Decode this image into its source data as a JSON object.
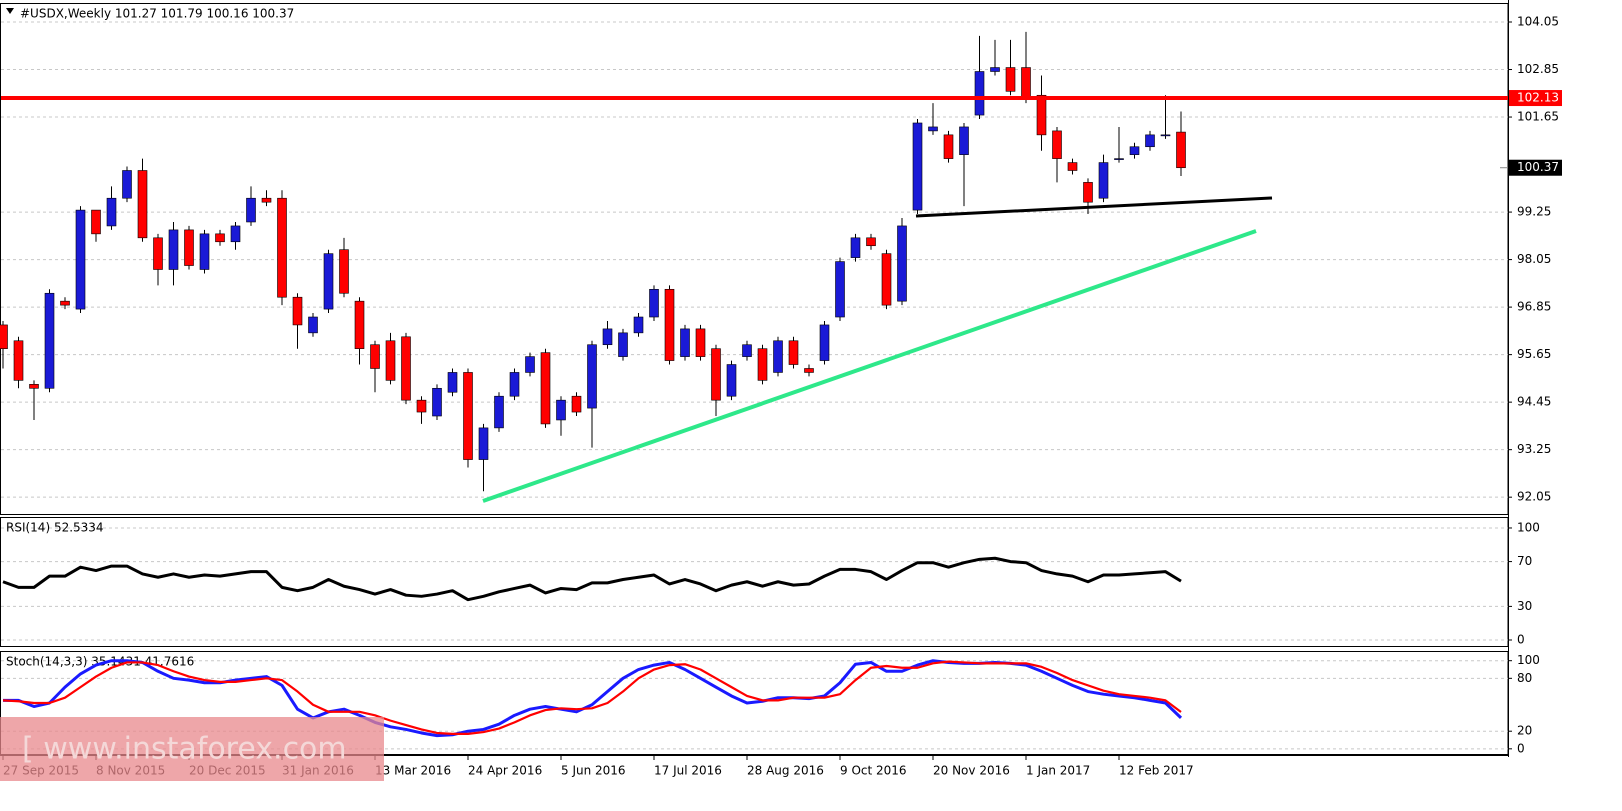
{
  "chart_data": [
    {
      "type": "candlestick",
      "title": "#USDX,Weekly  101.27 101.79 100.16 100.37",
      "categories": [
        "27 Sep 2015",
        null,
        null,
        null,
        null,
        null,
        "8 Nov 2015",
        null,
        null,
        null,
        null,
        null,
        "20 Dec 2015",
        null,
        null,
        null,
        null,
        null,
        "31 Jan 2016",
        null,
        null,
        null,
        null,
        null,
        "13 Mar 2016",
        null,
        null,
        null,
        null,
        null,
        "24 Apr 2016",
        null,
        null,
        null,
        null,
        null,
        "5 Jun 2016",
        null,
        null,
        null,
        null,
        null,
        "17 Jul 2016",
        null,
        null,
        null,
        null,
        null,
        "28 Aug 2016",
        null,
        null,
        null,
        null,
        null,
        "9 Oct 2016",
        null,
        null,
        null,
        null,
        null,
        "20 Nov 2016",
        null,
        null,
        null,
        null,
        null,
        "1 Jan 2017",
        null,
        null,
        null,
        null,
        null,
        "12 Feb 2017",
        null,
        null,
        null,
        null
      ],
      "open": [
        96.4,
        96.0,
        94.9,
        94.8,
        97.0,
        96.8,
        99.3,
        98.9,
        99.6,
        100.3,
        98.6,
        97.8,
        98.8,
        97.8,
        98.7,
        98.5,
        99.0,
        99.6,
        99.6,
        97.1,
        96.2,
        96.8,
        98.3,
        97.0,
        95.9,
        96.0,
        96.1,
        94.5,
        94.1,
        94.7,
        95.2,
        93.0,
        93.8,
        94.6,
        95.2,
        95.7,
        94.0,
        94.6,
        94.3,
        95.9,
        95.6,
        96.2,
        96.6,
        97.3,
        95.6,
        96.3,
        95.8,
        94.6,
        95.6,
        95.8,
        95.2,
        96.0,
        95.3,
        95.5,
        96.6,
        98.1,
        98.6,
        98.2,
        97.0,
        99.3,
        101.3,
        101.2,
        100.7,
        101.7,
        102.8,
        102.9,
        102.9,
        102.2,
        101.3,
        100.5,
        100.0,
        99.6,
        100.6,
        100.7,
        100.9,
        101.2,
        101.27
      ],
      "high": [
        96.5,
        96.1,
        95.0,
        97.3,
        97.1,
        99.4,
        99.3,
        99.9,
        100.4,
        100.6,
        98.7,
        99.0,
        98.9,
        98.8,
        98.8,
        99.0,
        99.9,
        99.8,
        99.8,
        97.2,
        96.7,
        98.3,
        98.6,
        97.1,
        96.0,
        96.2,
        96.2,
        94.6,
        94.9,
        95.3,
        95.3,
        93.9,
        94.7,
        95.3,
        95.7,
        95.8,
        94.6,
        94.7,
        96.0,
        96.5,
        96.3,
        96.7,
        97.4,
        97.4,
        96.4,
        96.4,
        95.9,
        95.5,
        96.0,
        95.9,
        96.1,
        96.1,
        95.4,
        96.5,
        98.1,
        98.7,
        98.7,
        98.3,
        99.1,
        101.6,
        102.0,
        101.3,
        101.5,
        103.7,
        103.6,
        103.6,
        103.8,
        102.7,
        101.4,
        100.6,
        100.1,
        100.7,
        101.4,
        101.0,
        101.3,
        102.2,
        101.79
      ],
      "low": [
        95.3,
        94.8,
        94.0,
        94.7,
        96.8,
        96.7,
        98.5,
        98.8,
        99.5,
        98.5,
        97.4,
        97.4,
        97.8,
        97.7,
        98.4,
        98.3,
        98.9,
        99.4,
        96.9,
        95.8,
        96.1,
        96.7,
        97.1,
        95.4,
        94.7,
        94.9,
        94.4,
        93.9,
        94.0,
        94.6,
        92.8,
        92.2,
        93.7,
        94.5,
        95.1,
        93.8,
        93.6,
        94.1,
        93.3,
        95.8,
        95.5,
        96.1,
        96.5,
        95.4,
        95.5,
        95.5,
        94.1,
        94.5,
        95.5,
        94.9,
        95.1,
        95.3,
        95.1,
        95.4,
        96.5,
        98.0,
        98.3,
        96.8,
        96.9,
        99.2,
        101.2,
        100.5,
        99.4,
        101.6,
        102.7,
        102.2,
        102.0,
        100.8,
        100.0,
        100.2,
        99.2,
        99.5,
        100.5,
        100.6,
        100.8,
        101.1,
        100.16
      ],
      "close": [
        95.8,
        95.0,
        94.8,
        97.2,
        96.9,
        99.3,
        98.7,
        99.6,
        100.3,
        98.6,
        97.8,
        98.8,
        97.9,
        98.7,
        98.5,
        98.9,
        99.6,
        99.5,
        97.1,
        96.4,
        96.6,
        98.2,
        97.2,
        95.8,
        95.3,
        95.0,
        94.5,
        94.2,
        94.8,
        95.2,
        93.0,
        93.8,
        94.6,
        95.2,
        95.6,
        93.9,
        94.5,
        94.2,
        95.9,
        96.3,
        96.2,
        96.6,
        97.3,
        95.5,
        96.3,
        95.6,
        94.5,
        95.4,
        95.9,
        95.0,
        96.0,
        95.4,
        95.2,
        96.4,
        98.0,
        98.6,
        98.4,
        96.9,
        98.9,
        101.5,
        101.4,
        100.6,
        101.4,
        102.8,
        102.9,
        102.3,
        102.1,
        101.2,
        100.6,
        100.3,
        99.5,
        100.5,
        100.6,
        100.9,
        101.2,
        101.2,
        100.37
      ],
      "up_color": "#1a1ad6",
      "down_color": "#ff0000",
      "level": 102.13,
      "level_color": "#ff0000",
      "ylim": [
        91.6,
        104.53
      ],
      "yticks": [
        104.05,
        102.85,
        101.65,
        99.25,
        98.05,
        96.85,
        95.65,
        94.45,
        93.25,
        92.05
      ],
      "grid": true,
      "watermark": "[  www.instaforex.com"
    },
    {
      "type": "line",
      "title": "RSI(14) 52.5334",
      "color": "#000000",
      "values": [
        52,
        47,
        47,
        57,
        57,
        65,
        62,
        66,
        66,
        59,
        56,
        59,
        56,
        58,
        57,
        59,
        61,
        61,
        47,
        44,
        47,
        54,
        48,
        45,
        41,
        45,
        40,
        39,
        41,
        44,
        36,
        39,
        43,
        46,
        49,
        42,
        46,
        45,
        51,
        51,
        54,
        56,
        58,
        50,
        54,
        50,
        44,
        49,
        52,
        48,
        52,
        49,
        50,
        57,
        63,
        63,
        61,
        54,
        62,
        69,
        69,
        65,
        69,
        72,
        73,
        70,
        69,
        62,
        59,
        57,
        52,
        58,
        58,
        59,
        60,
        61,
        52.53
      ],
      "ylim": [
        -6.25,
        109.8
      ],
      "yticks": [
        100,
        70,
        30,
        0
      ],
      "grid": true
    },
    {
      "type": "line",
      "title": "Stoch(14,3,3) 35.1431 41.7616",
      "series": [
        {
          "color": "#1a1aff",
          "values": [
            55,
            55,
            48,
            52,
            70,
            85,
            95,
            100,
            100,
            98,
            88,
            80,
            78,
            75,
            75,
            78,
            80,
            82,
            72,
            45,
            35,
            42,
            45,
            38,
            30,
            25,
            22,
            18,
            15,
            16,
            20,
            22,
            28,
            38,
            45,
            48,
            45,
            42,
            50,
            65,
            80,
            90,
            95,
            98,
            90,
            80,
            70,
            60,
            52,
            54,
            58,
            58,
            57,
            60,
            75,
            96,
            98,
            88,
            88,
            95,
            100,
            98,
            97,
            97,
            98,
            97,
            95,
            88,
            80,
            72,
            65,
            62,
            60,
            58,
            55,
            52,
            35.14
          ]
        },
        {
          "color": "#ff0000",
          "values": [
            55,
            54,
            52,
            52,
            58,
            70,
            82,
            92,
            98,
            98,
            95,
            88,
            82,
            78,
            76,
            76,
            78,
            80,
            78,
            65,
            50,
            42,
            42,
            42,
            38,
            32,
            27,
            22,
            18,
            17,
            17,
            19,
            23,
            30,
            38,
            44,
            46,
            45,
            46,
            52,
            65,
            80,
            90,
            95,
            96,
            90,
            80,
            70,
            60,
            55,
            55,
            58,
            58,
            58,
            62,
            78,
            92,
            94,
            92,
            92,
            97,
            99,
            98,
            97,
            97,
            97,
            97,
            93,
            86,
            78,
            72,
            66,
            62,
            60,
            58,
            55,
            41.76
          ]
        }
      ],
      "ylim": [
        -7,
        111
      ],
      "yticks": [
        100,
        80,
        20,
        0
      ],
      "grid": true
    }
  ]
}
